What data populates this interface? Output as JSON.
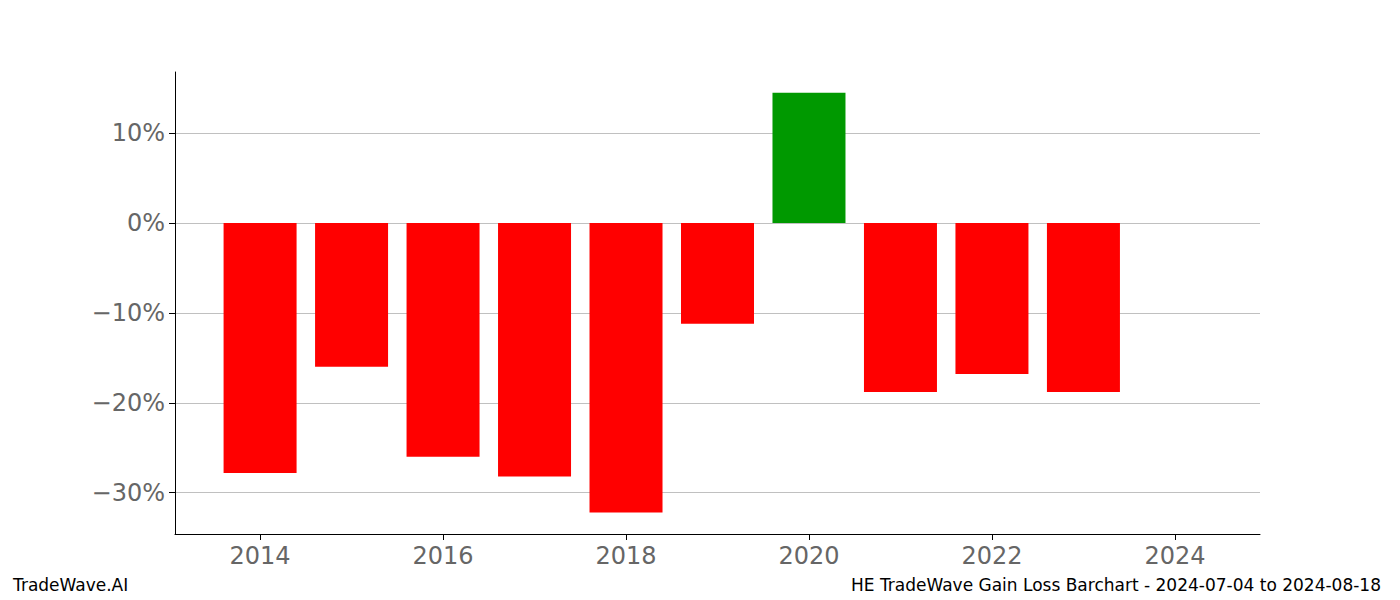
{
  "chart_data": {
    "type": "bar",
    "title": "HE TradeWave Gain Loss Barchart - 2024-07-04 to 2024-08-18",
    "annotations": [
      "TradeWave.AI"
    ],
    "x": [
      2014,
      2015,
      2016,
      2017,
      2018,
      2019,
      2020,
      2021,
      2022,
      2023
    ],
    "values": [
      -27.8,
      -16.0,
      -26.0,
      -28.2,
      -32.2,
      -11.2,
      14.5,
      -18.8,
      -16.8,
      -18.8
    ],
    "colors": [
      "#ff0000",
      "#ff0000",
      "#ff0000",
      "#ff0000",
      "#ff0000",
      "#ff0000",
      "#009900",
      "#ff0000",
      "#ff0000",
      "#ff0000"
    ],
    "xlim": [
      2013.07,
      2024.93
    ],
    "xticks": [
      2014,
      2016,
      2018,
      2020,
      2022,
      2024
    ],
    "ylim": [
      -34.6,
      16.8
    ],
    "yticks": [
      {
        "value": -30,
        "label": "−30%"
      },
      {
        "value": -20,
        "label": "−20%"
      },
      {
        "value": -10,
        "label": "−10%"
      },
      {
        "value": 0,
        "label": "0%"
      },
      {
        "value": 10,
        "label": "10%"
      }
    ],
    "grid": true
  }
}
